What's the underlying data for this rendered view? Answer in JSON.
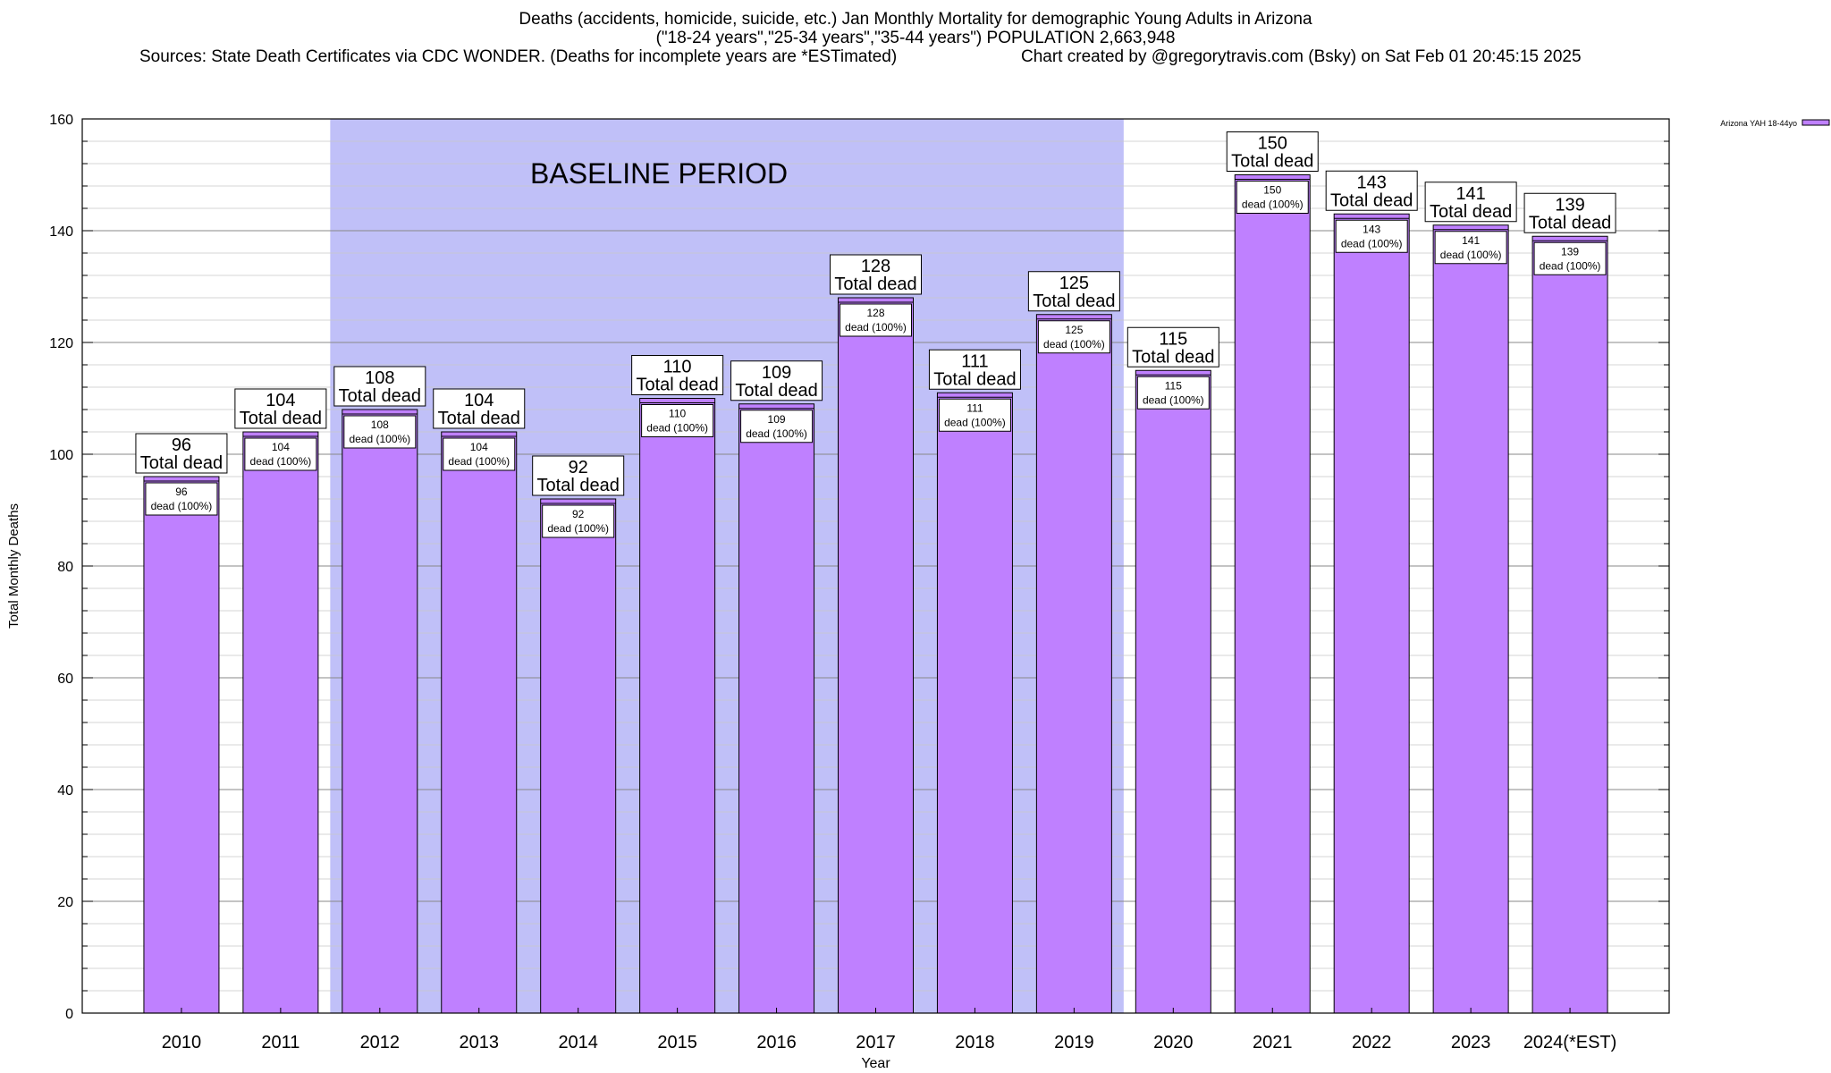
{
  "header": {
    "title_line1": "Deaths (accidents, homicide, suicide, etc.) Jan Monthly Mortality for demographic Young Adults in Arizona",
    "title_line2": "(\"18-24 years\",\"25-34 years\",\"35-44 years\") POPULATION 2,663,948",
    "sources": "Sources: State Death Certificates via CDC WONDER. (Deaths for incomplete years are *ESTimated)",
    "credit": "Chart created by @gregorytravis.com (Bsky) on Sat Feb 01 20:45:15 2025"
  },
  "chart_data": {
    "type": "bar",
    "xlabel": "Year",
    "ylabel": "Total Monthly Deaths",
    "ylim": [
      0,
      160
    ],
    "yticks": [
      0,
      20,
      40,
      60,
      80,
      100,
      120,
      140,
      160
    ],
    "grid": true,
    "legend_position": "top-right",
    "categories": [
      "2010",
      "2011",
      "2012",
      "2013",
      "2014",
      "2015",
      "2016",
      "2017",
      "2018",
      "2019",
      "2020",
      "2021",
      "2022",
      "2023",
      "2024(*EST)"
    ],
    "series": [
      {
        "name": "Arizona YAH 18-44yo",
        "values": [
          96,
          104,
          108,
          104,
          92,
          110,
          109,
          128,
          111,
          125,
          115,
          150,
          143,
          141,
          139
        ]
      }
    ],
    "total_label": "Total dead",
    "inner_label": "dead (100%)",
    "baseline": {
      "label": "BASELINE PERIOD",
      "from": "2012",
      "to": "2019"
    },
    "colors": {
      "bar": "#bf80ff",
      "baseline": "#c0c0f8",
      "bar_edge": "#000000"
    }
  }
}
